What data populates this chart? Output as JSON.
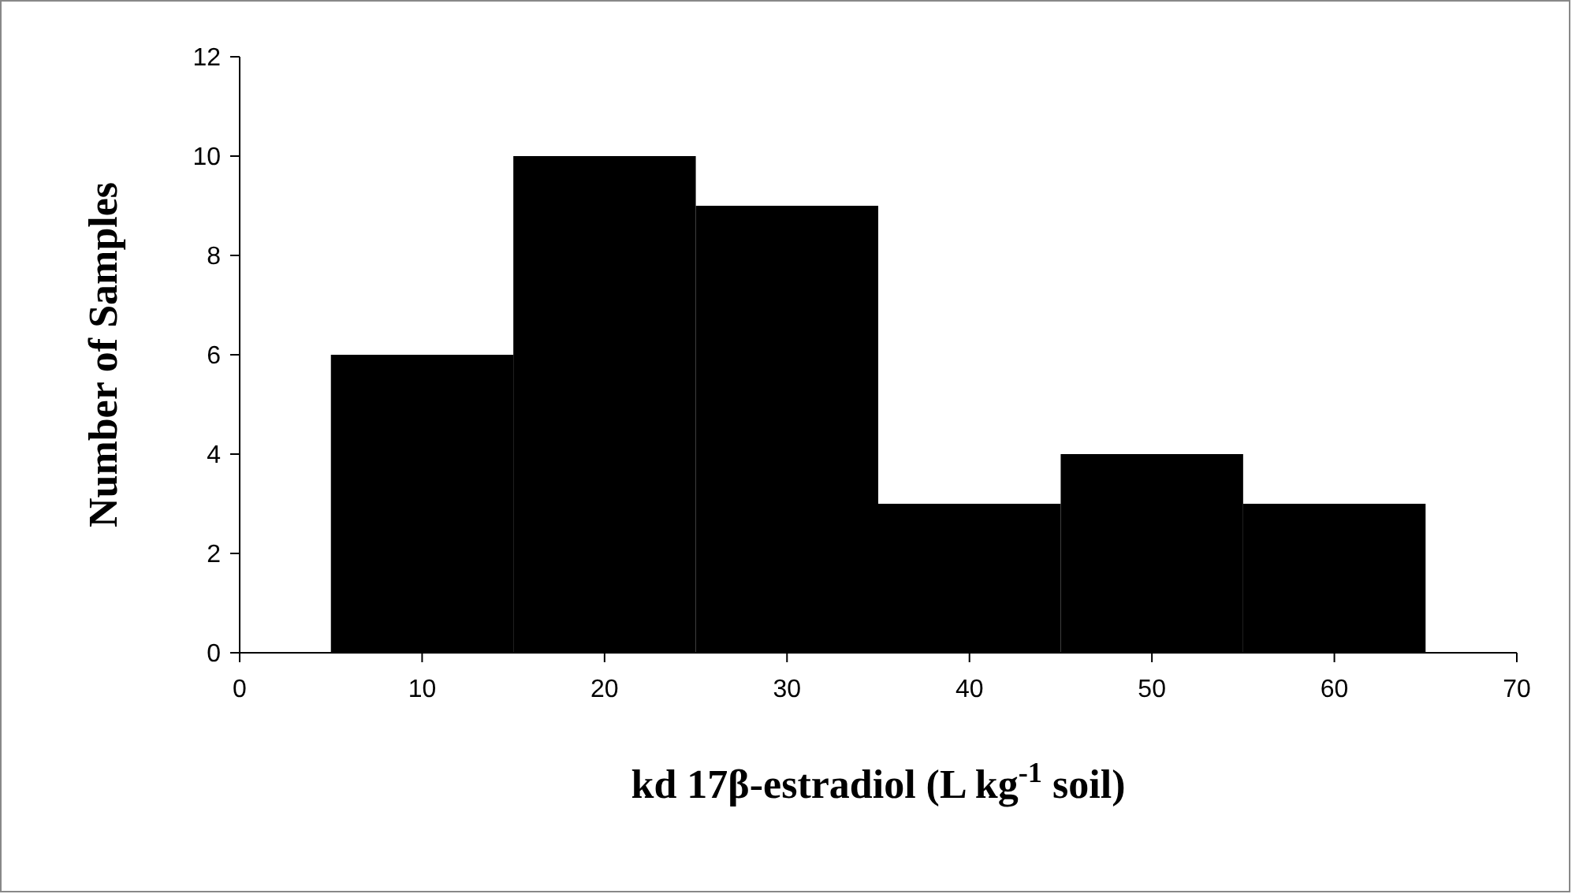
{
  "chart_data": {
    "type": "histogram",
    "xlabel": "kd 17β-estradiol (L kg$^{-1}$ soil)",
    "ylabel": "Number of Samples",
    "bins": [
      5,
      15,
      25,
      35,
      45,
      55,
      65
    ],
    "values": [
      6,
      10,
      9,
      3,
      4,
      3
    ],
    "color": "#000000",
    "xlim": [
      0,
      70
    ],
    "xticks": [
      0,
      10,
      20,
      30,
      40,
      50,
      60,
      70
    ],
    "ylim": [
      0,
      12
    ],
    "yticks": [
      0,
      2,
      4,
      6,
      8,
      10,
      12
    ],
    "grid": false
  }
}
